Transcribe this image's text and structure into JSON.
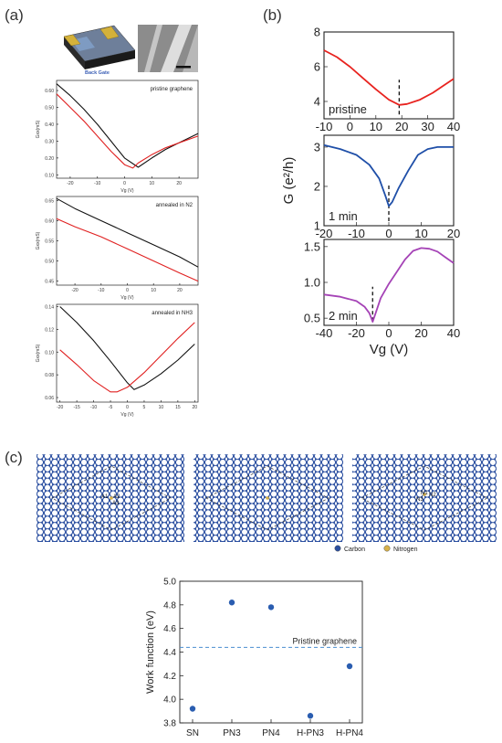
{
  "panel_labels": {
    "a": "(a)",
    "b": "(b)",
    "c": "(c)"
  },
  "device_label": "Back Gate",
  "chart_data": [
    {
      "id": "a1",
      "type": "line",
      "annotation": "pristine graphene",
      "xlabel": "Vg (V)",
      "ylabel": "Gxx(mS)",
      "xlim": [
        -25,
        27
      ],
      "ylim": [
        0.08,
        0.66
      ],
      "xticks": [
        -20,
        -10,
        0,
        10,
        20
      ],
      "yticks": [
        0.1,
        0.2,
        0.3,
        0.4,
        0.5,
        0.6
      ],
      "series": [
        {
          "color": "#111111",
          "x": [
            -25,
            -20,
            -15,
            -10,
            -5,
            0,
            5,
            10,
            15,
            20,
            27
          ],
          "y": [
            0.64,
            0.57,
            0.49,
            0.4,
            0.3,
            0.2,
            0.145,
            0.2,
            0.25,
            0.29,
            0.345
          ]
        },
        {
          "color": "#e02020",
          "x": [
            -25,
            -20,
            -15,
            -10,
            -5,
            0,
            3,
            5,
            10,
            15,
            20,
            27
          ],
          "y": [
            0.58,
            0.5,
            0.42,
            0.33,
            0.24,
            0.16,
            0.14,
            0.17,
            0.22,
            0.26,
            0.29,
            0.33
          ]
        }
      ]
    },
    {
      "id": "a2",
      "type": "line",
      "annotation": "annealed in N2",
      "xlabel": "Vg (V)",
      "ylabel": "Gxx(mS)",
      "xlim": [
        -27,
        27
      ],
      "ylim": [
        0.44,
        0.66
      ],
      "xticks": [
        -20,
        -10,
        0,
        10,
        20
      ],
      "yticks": [
        0.45,
        0.5,
        0.55,
        0.6,
        0.65
      ],
      "series": [
        {
          "color": "#111111",
          "x": [
            -27,
            -20,
            -10,
            0,
            10,
            20,
            27
          ],
          "y": [
            0.655,
            0.63,
            0.6,
            0.57,
            0.54,
            0.51,
            0.485
          ]
        },
        {
          "color": "#e02020",
          "x": [
            -27,
            -20,
            -10,
            0,
            10,
            20,
            27
          ],
          "y": [
            0.605,
            0.585,
            0.56,
            0.53,
            0.5,
            0.47,
            0.45
          ]
        }
      ]
    },
    {
      "id": "a3",
      "type": "line",
      "annotation": "annealed in NH3",
      "xlabel": "Vg (V)",
      "ylabel": "Gxx(mS)",
      "xlim": [
        -21,
        21
      ],
      "ylim": [
        0.056,
        0.142
      ],
      "xticks": [
        -20,
        -15,
        -10,
        -5,
        0,
        5,
        10,
        15,
        20
      ],
      "yticks": [
        0.06,
        0.08,
        0.1,
        0.12,
        0.14
      ],
      "series": [
        {
          "color": "#111111",
          "x": [
            -20,
            -15,
            -10,
            -5,
            0,
            2,
            5,
            10,
            15,
            20
          ],
          "y": [
            0.14,
            0.126,
            0.11,
            0.092,
            0.073,
            0.067,
            0.071,
            0.081,
            0.093,
            0.107
          ]
        },
        {
          "color": "#e02020",
          "x": [
            -20,
            -15,
            -10,
            -5,
            -3,
            0,
            5,
            10,
            15,
            20
          ],
          "y": [
            0.102,
            0.089,
            0.075,
            0.065,
            0.065,
            0.069,
            0.082,
            0.097,
            0.112,
            0.126
          ]
        }
      ]
    },
    {
      "id": "b1",
      "type": "line",
      "annotation": "pristine",
      "xlabel": "",
      "ylabel": "",
      "xlim": [
        -10,
        40
      ],
      "ylim": [
        3,
        8
      ],
      "xticks": [
        -10,
        0,
        10,
        20,
        30,
        40
      ],
      "yticks": [
        4,
        6,
        8
      ],
      "dirac": 19,
      "series": [
        {
          "color": "#e8231f",
          "x": [
            -10,
            -5,
            0,
            5,
            10,
            15,
            19,
            22,
            27,
            32,
            36,
            40
          ],
          "y": [
            6.95,
            6.55,
            6.0,
            5.35,
            4.7,
            4.1,
            3.8,
            3.85,
            4.1,
            4.5,
            4.9,
            5.3
          ]
        }
      ]
    },
    {
      "id": "b2",
      "type": "line",
      "annotation": "1 min",
      "xlabel": "",
      "ylabel": "G (e²/h)",
      "xlim": [
        -20,
        20
      ],
      "ylim": [
        1,
        3.3
      ],
      "xticks": [
        -20,
        -10,
        0,
        10,
        20
      ],
      "yticks": [
        1,
        2,
        3
      ],
      "dirac": 0,
      "series": [
        {
          "color": "#1f4fa8",
          "x": [
            -20,
            -15,
            -10,
            -6,
            -3,
            -1,
            0,
            1,
            3,
            6,
            9,
            12,
            15,
            20
          ],
          "y": [
            3.05,
            2.95,
            2.8,
            2.55,
            2.2,
            1.75,
            1.5,
            1.6,
            1.95,
            2.4,
            2.8,
            2.95,
            3.0,
            3.0
          ]
        }
      ]
    },
    {
      "id": "b3",
      "type": "line",
      "annotation": "2 min",
      "xlabel": "Vg (V)",
      "ylabel": "",
      "xlim": [
        -40,
        40
      ],
      "ylim": [
        0.4,
        1.6
      ],
      "xticks": [
        -40,
        -20,
        0,
        20,
        40
      ],
      "yticks": [
        0.5,
        1.0,
        1.5
      ],
      "dirac": -10,
      "series": [
        {
          "color": "#a543b6",
          "x": [
            -40,
            -30,
            -20,
            -15,
            -12,
            -10,
            -8,
            -5,
            0,
            5,
            10,
            15,
            20,
            25,
            30,
            35,
            40
          ],
          "y": [
            0.83,
            0.8,
            0.74,
            0.66,
            0.57,
            0.45,
            0.58,
            0.78,
            0.98,
            1.15,
            1.32,
            1.44,
            1.48,
            1.47,
            1.43,
            1.35,
            1.27
          ]
        }
      ]
    },
    {
      "id": "c",
      "type": "scatter",
      "xlabel": "",
      "ylabel": "Work function (eV)",
      "categories": [
        "SN",
        "PN3",
        "PN4",
        "H-PN3",
        "H-PN4"
      ],
      "values": [
        3.92,
        4.82,
        4.78,
        3.86,
        4.28
      ],
      "ylim": [
        3.8,
        5.0
      ],
      "yticks": [
        3.8,
        4.0,
        4.2,
        4.4,
        4.6,
        4.8,
        5.0
      ],
      "reference": {
        "label": "Pristine graphene",
        "value": 4.44
      },
      "color": "#2a5db0"
    }
  ],
  "lattice": {
    "legend": [
      {
        "label": "Carbon",
        "color": "#2b4fa0"
      },
      {
        "label": "Nitrogen",
        "color": "#d8b24a"
      }
    ],
    "site_labels_1": [
      "A1",
      "A2",
      "A3"
    ],
    "site_labels_3": [
      "N1",
      "N2",
      "N3"
    ]
  }
}
